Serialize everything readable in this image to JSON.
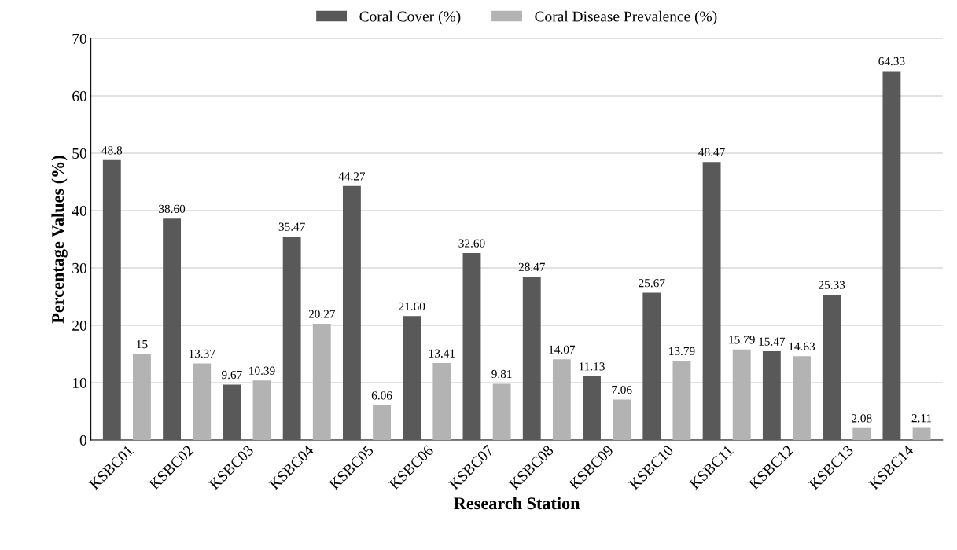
{
  "chart_data": {
    "type": "bar",
    "xlabel": "Research Station",
    "ylabel": "Percentage Values (%)",
    "categories": [
      "KSBC01",
      "KSBC02",
      "KSBC03",
      "KSBC04",
      "KSBC05",
      "KSBC06",
      "KSBC07",
      "KSBC08",
      "KSBC09",
      "KSBC10",
      "KSBC11",
      "KSBC12",
      "KSBC13",
      "KSBC14"
    ],
    "series": [
      {
        "name": "Coral Cover (%)",
        "color": "#595959",
        "values": [
          48.8,
          38.6,
          9.67,
          35.47,
          44.27,
          21.6,
          32.6,
          28.47,
          11.13,
          25.67,
          48.47,
          15.47,
          25.33,
          64.33
        ],
        "value_labels": [
          "48.8",
          "38.60",
          "9.67",
          "35.47",
          "44.27",
          "21.60",
          "32.60",
          "28.47",
          "11.13",
          "25.67",
          "48.47",
          "15.47",
          "25.33",
          "64.33"
        ]
      },
      {
        "name": "Coral Disease Prevalence (%)",
        "color": "#b3b3b3",
        "values": [
          15,
          13.37,
          10.39,
          20.27,
          6.06,
          13.41,
          9.81,
          14.07,
          7.06,
          13.79,
          15.79,
          14.63,
          2.08,
          2.11
        ],
        "value_labels": [
          "15",
          "13.37",
          "10.39",
          "20.27",
          "6.06",
          "13.41",
          "9.81",
          "14.07",
          "7.06",
          "13.79",
          "15.79",
          "14.63",
          "2.08",
          "2.11"
        ]
      }
    ],
    "ylim": [
      0,
      70
    ],
    "yticks": [
      0,
      10,
      20,
      30,
      40,
      50,
      60,
      70
    ],
    "grid": "y",
    "legend": "top"
  }
}
